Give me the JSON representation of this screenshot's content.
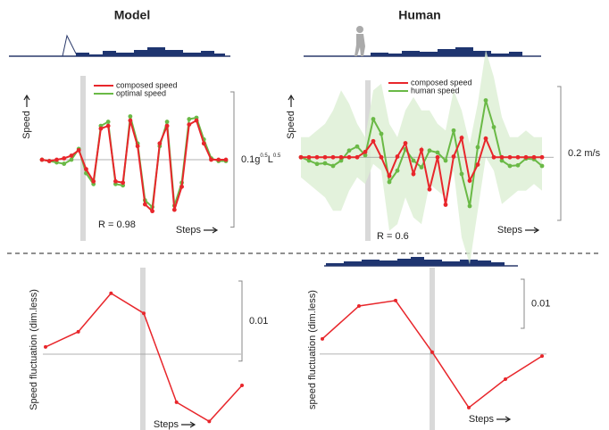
{
  "chart_data": [
    {
      "type": "line",
      "title": "Model",
      "y_label": "Speed",
      "x_label": "Steps",
      "annotation": "R = 0.98",
      "ylim": [
        -0.06,
        0.062
      ],
      "scale_bar": 0.1,
      "scale_label_parts": [
        "0.1g",
        "0.5",
        "L",
        "0.5"
      ],
      "series": [
        {
          "name": "composed speed",
          "color": "#e8262b",
          "values": [
            0,
            -0.001,
            0,
            0.001,
            0.003,
            0.007,
            -0.007,
            -0.016,
            0.023,
            0.025,
            -0.016,
            -0.017,
            0.029,
            0.01,
            -0.033,
            -0.038,
            0.012,
            0.025,
            -0.037,
            -0.02,
            0.026,
            0.029,
            0.012,
            0,
            0,
            0
          ]
        },
        {
          "name": "optimal speed",
          "color": "#6ab946",
          "values": [
            0,
            -0.001,
            -0.002,
            -0.003,
            0,
            0.008,
            -0.01,
            -0.018,
            0.025,
            0.028,
            -0.018,
            -0.019,
            0.032,
            0.012,
            -0.03,
            -0.035,
            0.01,
            0.028,
            -0.034,
            -0.017,
            0.03,
            0.031,
            0.015,
            0.001,
            -0.001,
            -0.001
          ]
        }
      ]
    },
    {
      "type": "line",
      "title": "Human",
      "y_label": "Speed",
      "x_label": "Steps",
      "annotation": "R = 0.6",
      "ylim": [
        -0.125,
        0.115
      ],
      "scale_bar": 0.2,
      "scale_label_parts": [
        "0.2 m/s"
      ],
      "band_color": "#dcefd3",
      "band_upper": [
        0.03,
        0.03,
        0.04,
        0.05,
        0.07,
        0.1,
        0.08,
        0.05,
        0.03,
        0.1,
        0.11,
        0.05,
        0.03,
        0.07,
        0.09,
        0.07,
        0.07,
        0.05,
        0.04,
        0.1,
        0.07,
        0.02,
        0.08,
        0.16,
        0.12,
        0.06,
        0.03,
        0.03,
        0.04,
        0.03,
        0.03
      ],
      "band_lower": [
        -0.03,
        -0.04,
        -0.05,
        -0.06,
        -0.08,
        -0.08,
        -0.05,
        -0.03,
        -0.04,
        -0.01,
        -0.02,
        -0.11,
        -0.1,
        -0.06,
        -0.09,
        -0.1,
        -0.04,
        -0.05,
        -0.06,
        -0.02,
        -0.12,
        -0.16,
        -0.08,
        0.0,
        -0.02,
        -0.07,
        -0.06,
        -0.05,
        -0.05,
        -0.04,
        -0.05
      ],
      "series": [
        {
          "name": "composed speed",
          "color": "#e8262b",
          "values": [
            0,
            0,
            0,
            0,
            0,
            0,
            0,
            0,
            0.008,
            0.024,
            0,
            -0.028,
            0.001,
            0.021,
            -0.025,
            0.011,
            -0.048,
            0,
            -0.071,
            0.001,
            0.029,
            -0.035,
            -0.011,
            0.028,
            0,
            0,
            0,
            0,
            0,
            0,
            0
          ]
        },
        {
          "name": "human speed",
          "color": "#6ab946",
          "values": [
            0,
            -0.005,
            -0.01,
            -0.009,
            -0.013,
            -0.005,
            0.01,
            0.016,
            0.003,
            0.057,
            0.035,
            -0.037,
            -0.02,
            0.012,
            -0.005,
            -0.015,
            0.01,
            0.007,
            -0.005,
            0.04,
            -0.025,
            -0.073,
            0.015,
            0.085,
            0.045,
            -0.005,
            -0.013,
            -0.012,
            -0.002,
            -0.003,
            -0.013
          ]
        }
      ]
    },
    {
      "type": "line",
      "y_label": "Speed fluctuation (dim.less)",
      "x_label": "Steps",
      "ylim": [
        -0.0098,
        0.0108
      ],
      "scale_bar": 0.01,
      "scale_label_parts": [
        "0.01"
      ],
      "series": [
        {
          "color": "#e8262b",
          "values": [
            0.0009,
            0.0028,
            0.0076,
            0.0051,
            -0.006,
            -0.0084,
            -0.0039
          ]
        }
      ]
    },
    {
      "type": "line",
      "y_label": "speed fluctuation (dim.less)",
      "x_label": "Steps",
      "ylim": [
        -0.016,
        0.0176
      ],
      "scale_bar": 0.01,
      "scale_label_parts": [
        "0.01"
      ],
      "series": [
        {
          "color": "#e8262b",
          "values": [
            0.0031,
            0.0098,
            0.0109,
            0.0004,
            -0.0109,
            -0.0051,
            -0.0004
          ]
        }
      ]
    }
  ]
}
